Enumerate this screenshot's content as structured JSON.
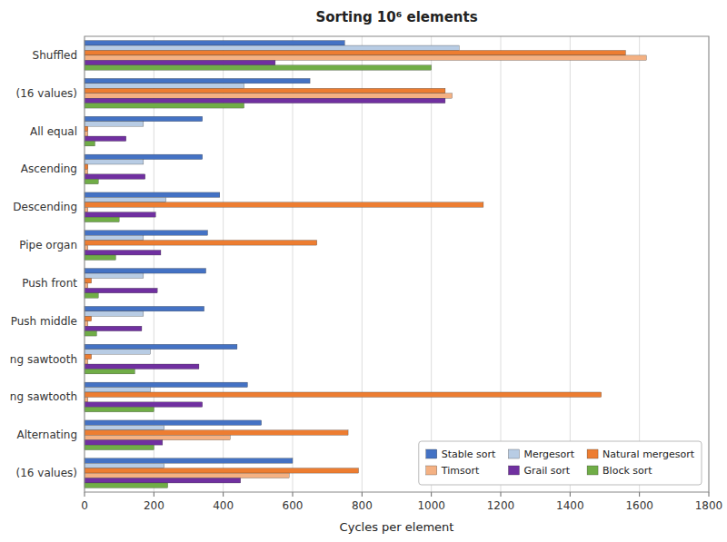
{
  "chart_data": {
    "type": "bar",
    "orientation": "horizontal",
    "title": "Sorting 10⁶ elements",
    "xlabel": "Cycles per element",
    "categories": [
      "Shuffled",
      "(16 values)",
      "All equal",
      "Ascending",
      "Descending",
      "Pipe organ",
      "Push front",
      "Push middle",
      "ng sawtooth",
      "ng sawtooth",
      "Alternating",
      "(16 values)"
    ],
    "series": [
      {
        "name": "Stable sort",
        "color": "#4472c4",
        "values": [
          750,
          650,
          340,
          340,
          390,
          355,
          350,
          345,
          440,
          470,
          510,
          600
        ]
      },
      {
        "name": "Mergesort",
        "color": "#b8cce4",
        "values": [
          1080,
          460,
          170,
          170,
          235,
          170,
          170,
          170,
          190,
          190,
          230,
          230
        ]
      },
      {
        "name": "Natural mergesort",
        "color": "#ed7d31",
        "values": [
          1560,
          1040,
          10,
          10,
          1150,
          670,
          20,
          20,
          20,
          1490,
          760,
          790
        ]
      },
      {
        "name": "Timsort",
        "color": "#f4b183",
        "values": [
          1620,
          1060,
          10,
          10,
          10,
          10,
          10,
          10,
          10,
          10,
          420,
          590
        ]
      },
      {
        "name": "Grail sort",
        "color": "#7030a0",
        "values": [
          550,
          1040,
          120,
          175,
          205,
          220,
          210,
          165,
          330,
          340,
          225,
          450
        ]
      },
      {
        "name": "Block sort",
        "color": "#70ad47",
        "values": [
          1000,
          460,
          30,
          40,
          100,
          90,
          40,
          35,
          145,
          200,
          200,
          240
        ]
      }
    ],
    "xlim": [
      0,
      1800
    ],
    "xticks": [
      0,
      200,
      400,
      600,
      800,
      1000,
      1200,
      1400,
      1600,
      1800
    ],
    "grid": true,
    "legend": "lower right"
  }
}
